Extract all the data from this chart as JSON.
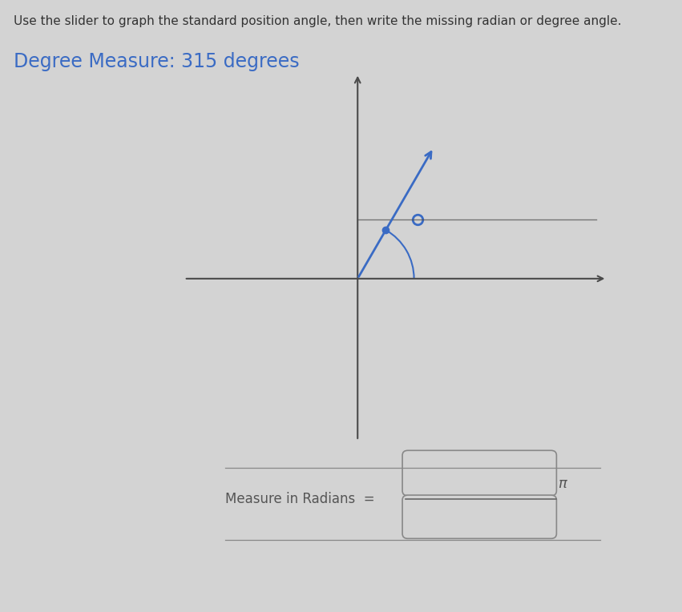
{
  "instruction_text": "Use the slider to graph the standard position angle, then write the missing radian or degree angle.",
  "degree_label": "Degree Measure: 315 degrees",
  "degree_value": 315,
  "background_color": "#d3d3d3",
  "axis_color": "#4a4a4a",
  "angle_line_color": "#3a6bc4",
  "arc_color": "#3a6bc4",
  "measure_label": "Measure in Radians  =",
  "pi_symbol": "π",
  "instruction_fontsize": 11,
  "degree_label_fontsize": 17,
  "measure_fontsize": 12,
  "box_facecolor": "#d3d3d3",
  "box_edge_color": "#888888",
  "text_color": "#555555",
  "degree_text_color": "#3a6bc4"
}
